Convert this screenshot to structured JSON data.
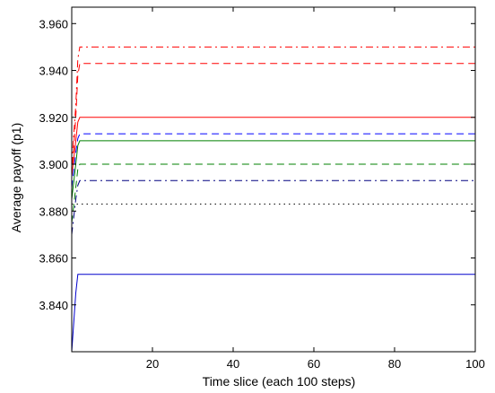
{
  "chart_data": {
    "type": "line",
    "title": "",
    "xlabel": "Time slice (each 100 steps)",
    "ylabel": "Average payoff (p1)",
    "xlim": [
      0,
      100
    ],
    "ylim": [
      3.82,
      3.967
    ],
    "xticks": [
      20,
      40,
      60,
      80,
      100
    ],
    "xtick_labels": [
      "20",
      "40",
      "60",
      "80",
      "100"
    ],
    "yticks": [
      3.84,
      3.86,
      3.88,
      3.9,
      3.92,
      3.94,
      3.96
    ],
    "ytick_labels": [
      "3.840",
      "3.860",
      "3.880",
      "3.900",
      "3.920",
      "3.940",
      "3.960"
    ],
    "grid": false,
    "legend": "none",
    "series": [
      {
        "color": "#000000",
        "style": "dotted",
        "x": [
          0,
          1,
          2,
          100
        ],
        "values": [
          3.967,
          3.967,
          3.967,
          3.967
        ]
      },
      {
        "color": "#000000",
        "style": "dotted",
        "x": [
          0,
          1,
          2,
          100
        ],
        "values": [
          3.883,
          3.883,
          3.883,
          3.883
        ]
      },
      {
        "color": "#ff0000",
        "style": "dashdot",
        "x": [
          0,
          1,
          1.5,
          2,
          100
        ],
        "values": [
          3.9,
          3.925,
          3.945,
          3.95,
          3.95
        ]
      },
      {
        "color": "#ff0000",
        "style": "dashed",
        "x": [
          0,
          1,
          1.5,
          2,
          100
        ],
        "values": [
          3.895,
          3.92,
          3.938,
          3.943,
          3.943
        ]
      },
      {
        "color": "#ff0000",
        "style": "solid",
        "x": [
          0,
          1,
          1.5,
          2,
          100
        ],
        "values": [
          3.895,
          3.91,
          3.918,
          3.92,
          3.92
        ]
      },
      {
        "color": "#0000ff",
        "style": "dashed",
        "x": [
          0,
          1,
          1.5,
          2,
          100
        ],
        "values": [
          3.89,
          3.905,
          3.911,
          3.913,
          3.913
        ]
      },
      {
        "color": "#008000",
        "style": "solid",
        "x": [
          0,
          1,
          1.5,
          2,
          100
        ],
        "values": [
          3.885,
          3.9,
          3.908,
          3.91,
          3.91
        ]
      },
      {
        "color": "#008000",
        "style": "dashed",
        "x": [
          0,
          1,
          1.5,
          2,
          100
        ],
        "values": [
          3.875,
          3.89,
          3.898,
          3.9,
          3.9
        ]
      },
      {
        "color": "#000080",
        "style": "dashdot",
        "x": [
          0,
          1,
          1.5,
          2,
          100
        ],
        "values": [
          3.87,
          3.885,
          3.891,
          3.893,
          3.893
        ]
      },
      {
        "color": "#0000cc",
        "style": "solid",
        "x": [
          0,
          1,
          1.5,
          2,
          10,
          100
        ],
        "values": [
          3.82,
          3.845,
          3.853,
          3.853,
          3.853,
          3.853
        ]
      }
    ]
  }
}
